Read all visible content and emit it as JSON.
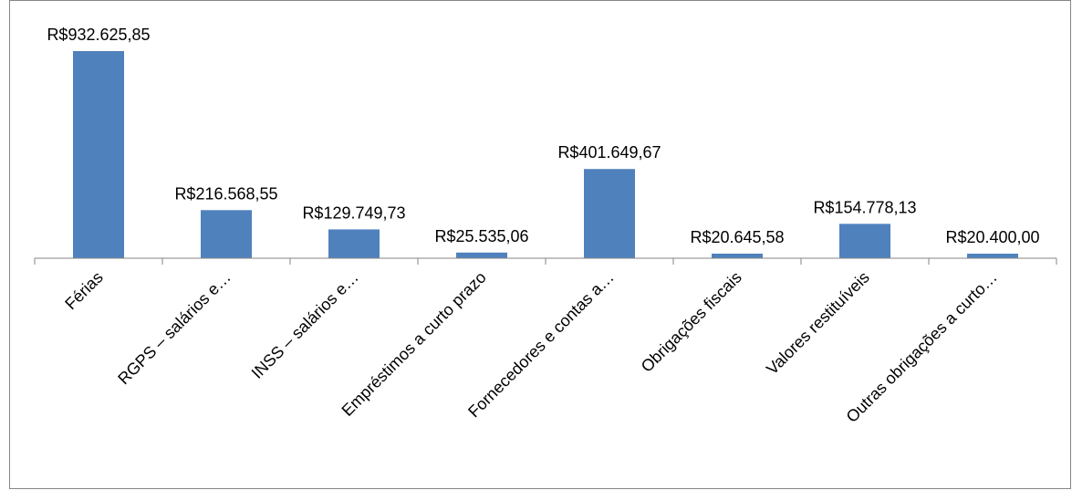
{
  "chart_data": {
    "type": "bar",
    "categories": [
      "Férias",
      "RGPS – salários e…",
      "INSS – salários e…",
      "Empréstimos a curto prazo",
      "Fornecedores e contas a…",
      "Obrigações fiscais",
      "Valores restituíveis",
      "Outras obrigações a curto…"
    ],
    "values": [
      932625.85,
      216568.55,
      129749.73,
      25535.06,
      401649.67,
      20645.58,
      154778.13,
      20400.0
    ],
    "value_labels": [
      "R$932.625,85",
      "R$216.568,55",
      "R$129.749,73",
      "R$25.535,06",
      "R$401.649,67",
      "R$20.645,58",
      "R$154.778,13",
      "R$20.400,00"
    ],
    "color": "#4f81bd"
  }
}
